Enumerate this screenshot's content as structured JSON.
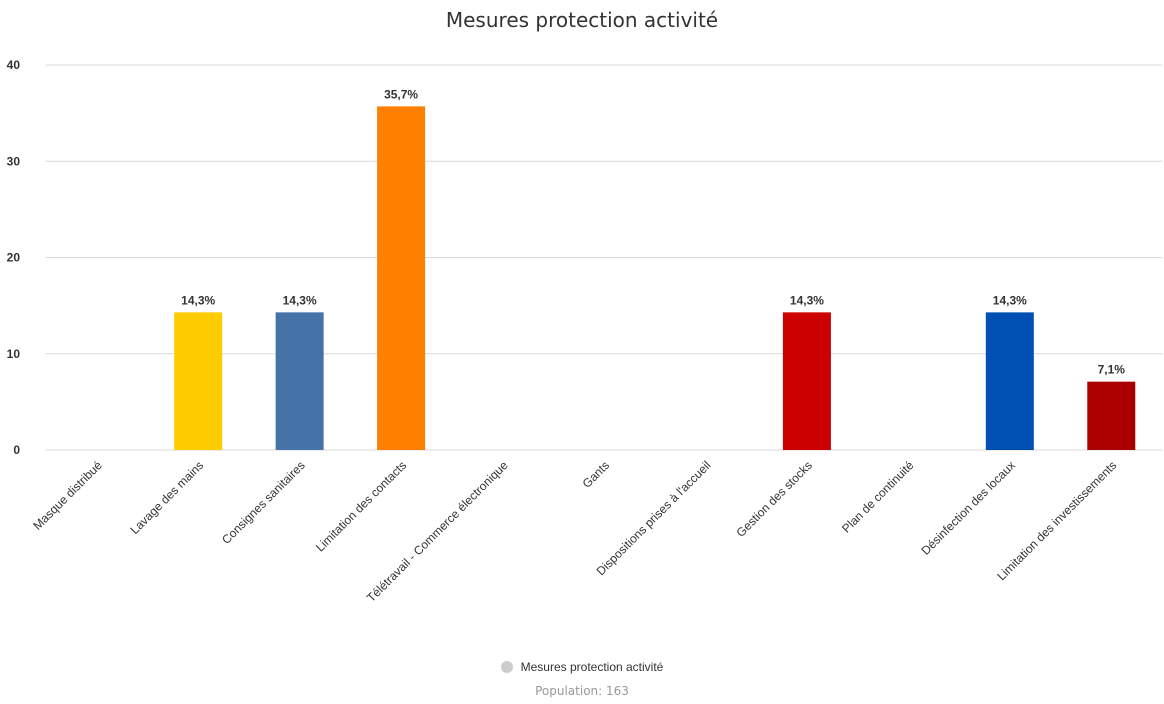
{
  "chart_data": {
    "type": "bar",
    "title": "Mesures protection activité",
    "categories": [
      "Masque distribué",
      "Lavage des mains",
      "Consignes sanitaires",
      "Limitation des contacts",
      "Télétravail - Commerce électronique",
      "Gants",
      "Dispositions prises à l'accueil",
      "Gestion des stocks",
      "Plan de continuité",
      "Désinfection des locaux",
      "Limitation des investissements"
    ],
    "values": [
      0,
      14.3,
      14.3,
      35.7,
      0,
      0,
      0,
      14.3,
      0,
      14.3,
      7.1
    ],
    "data_labels": [
      "",
      "14,3%",
      "14,3%",
      "35,7%",
      "",
      "",
      "",
      "14,3%",
      "",
      "14,3%",
      "7,1%"
    ],
    "colors": [
      "#888888",
      "#ffcc00",
      "#4572a7",
      "#ff8000",
      "#888888",
      "#888888",
      "#888888",
      "#cc0000",
      "#888888",
      "#0050b4",
      "#aa0000"
    ],
    "ylim": [
      0,
      40
    ],
    "yticks": [
      0,
      10,
      20,
      30,
      40
    ],
    "grid": true,
    "legend_position": "bottom-center",
    "xlabel": "",
    "ylabel": "",
    "series": [
      {
        "name": "Mesures protection activité",
        "values": [
          0,
          14.3,
          14.3,
          35.7,
          0,
          0,
          0,
          14.3,
          0,
          14.3,
          7.1
        ]
      }
    ]
  },
  "legend": {
    "label": "Mesures protection activité",
    "subtitle": "Population: 163",
    "marker_color": "#cccccc"
  }
}
